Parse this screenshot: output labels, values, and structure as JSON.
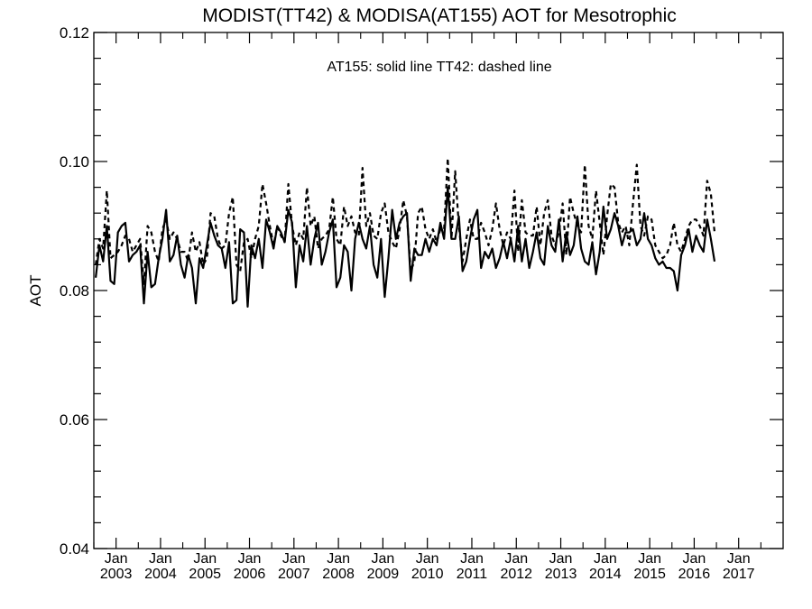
{
  "chart_data": {
    "type": "line",
    "title": "MODIST(TT42) & MODISA(AT155)  AOT for Mesotrophic",
    "annotation": "AT155: solid line   TT42: dashed line",
    "xlabel": "",
    "ylabel": "AOT",
    "ylim": [
      0.04,
      0.12
    ],
    "yticks": [
      0.04,
      0.06,
      0.08,
      0.1,
      0.12
    ],
    "ytick_labels": [
      "0.04",
      "0.06",
      "0.08",
      "0.10",
      "0.12"
    ],
    "xlim": [
      "2002-07",
      "2017-12"
    ],
    "xticks": [
      {
        "month": "Jan",
        "year": "2003"
      },
      {
        "month": "Jan",
        "year": "2004"
      },
      {
        "month": "Jan",
        "year": "2005"
      },
      {
        "month": "Jan",
        "year": "2006"
      },
      {
        "month": "Jan",
        "year": "2007"
      },
      {
        "month": "Jan",
        "year": "2008"
      },
      {
        "month": "Jan",
        "year": "2009"
      },
      {
        "month": "Jan",
        "year": "2010"
      },
      {
        "month": "Jan",
        "year": "2011"
      },
      {
        "month": "Jan",
        "year": "2012"
      },
      {
        "month": "Jan",
        "year": "2013"
      },
      {
        "month": "Jan",
        "year": "2014"
      },
      {
        "month": "Jan",
        "year": "2015"
      },
      {
        "month": "Jan",
        "year": "2016"
      },
      {
        "month": "Jan",
        "year": "2017"
      }
    ],
    "grid": false,
    "legend": "none",
    "series": [
      {
        "name": "AT155",
        "style": "solid",
        "color": "#000000",
        "start": "2002-07",
        "values": [
          0.082,
          0.087,
          0.0845,
          0.09,
          0.0815,
          0.081,
          0.089,
          0.09,
          0.0905,
          0.0845,
          0.0855,
          0.086,
          0.087,
          0.078,
          0.086,
          0.0805,
          0.081,
          0.085,
          0.088,
          0.0925,
          0.0845,
          0.0855,
          0.0885,
          0.084,
          0.082,
          0.0855,
          0.0835,
          0.078,
          0.085,
          0.0835,
          0.087,
          0.0905,
          0.0885,
          0.087,
          0.0865,
          0.0835,
          0.0875,
          0.078,
          0.0785,
          0.0895,
          0.089,
          0.0775,
          0.087,
          0.085,
          0.088,
          0.0835,
          0.091,
          0.089,
          0.0865,
          0.09,
          0.089,
          0.0875,
          0.0925,
          0.0905,
          0.0805,
          0.087,
          0.0845,
          0.09,
          0.084,
          0.088,
          0.0905,
          0.084,
          0.086,
          0.089,
          0.091,
          0.0805,
          0.082,
          0.087,
          0.086,
          0.08,
          0.088,
          0.0905,
          0.088,
          0.0865,
          0.09,
          0.084,
          0.082,
          0.088,
          0.079,
          0.085,
          0.0925,
          0.088,
          0.0905,
          0.0915,
          0.092,
          0.0815,
          0.0865,
          0.0855,
          0.0855,
          0.088,
          0.086,
          0.088,
          0.087,
          0.0905,
          0.088,
          0.096,
          0.088,
          0.088,
          0.0915,
          0.083,
          0.0845,
          0.088,
          0.091,
          0.0925,
          0.0835,
          0.086,
          0.085,
          0.0865,
          0.0835,
          0.085,
          0.0875,
          0.085,
          0.088,
          0.0845,
          0.09,
          0.0845,
          0.088,
          0.0835,
          0.086,
          0.089,
          0.085,
          0.084,
          0.09,
          0.087,
          0.086,
          0.091,
          0.0845,
          0.089,
          0.0855,
          0.087,
          0.0915,
          0.0865,
          0.0845,
          0.084,
          0.0875,
          0.0825,
          0.086,
          0.093,
          0.088,
          0.0895,
          0.092,
          0.09,
          0.087,
          0.089,
          0.089,
          0.0895,
          0.087,
          0.088,
          0.092,
          0.088,
          0.087,
          0.085,
          0.084,
          0.0845,
          0.0835,
          0.0835,
          0.083,
          0.08,
          0.0855,
          0.087,
          0.0895,
          0.086,
          0.0885,
          0.087,
          0.086,
          0.091,
          0.088,
          0.0845
        ]
      },
      {
        "name": "TT42",
        "style": "dashed",
        "color": "#000000",
        "start": "2002-07",
        "values": [
          0.084,
          0.088,
          0.0865,
          0.0955,
          0.085,
          0.0855,
          0.086,
          0.087,
          0.0885,
          0.088,
          0.086,
          0.087,
          0.088,
          0.081,
          0.09,
          0.089,
          0.086,
          0.0845,
          0.0895,
          0.091,
          0.088,
          0.089,
          0.088,
          0.086,
          0.086,
          0.0845,
          0.089,
          0.086,
          0.0875,
          0.084,
          0.085,
          0.092,
          0.0915,
          0.088,
          0.0865,
          0.087,
          0.092,
          0.0945,
          0.084,
          0.083,
          0.0875,
          0.088,
          0.085,
          0.088,
          0.09,
          0.0965,
          0.0935,
          0.09,
          0.087,
          0.09,
          0.0885,
          0.0875,
          0.0965,
          0.09,
          0.087,
          0.089,
          0.088,
          0.096,
          0.09,
          0.0915,
          0.0865,
          0.088,
          0.0885,
          0.0895,
          0.0945,
          0.088,
          0.087,
          0.093,
          0.09,
          0.0915,
          0.089,
          0.0885,
          0.099,
          0.09,
          0.092,
          0.0885,
          0.088,
          0.092,
          0.0935,
          0.089,
          0.0875,
          0.0865,
          0.0895,
          0.094,
          0.0915,
          0.083,
          0.0845,
          0.092,
          0.093,
          0.0895,
          0.088,
          0.0895,
          0.0875,
          0.0895,
          0.0895,
          0.1005,
          0.088,
          0.0985,
          0.09,
          0.0845,
          0.088,
          0.091,
          0.088,
          0.088,
          0.0905,
          0.089,
          0.087,
          0.0895,
          0.0935,
          0.0895,
          0.087,
          0.089,
          0.088,
          0.0955,
          0.086,
          0.094,
          0.089,
          0.0885,
          0.0885,
          0.093,
          0.087,
          0.092,
          0.094,
          0.0885,
          0.087,
          0.089,
          0.0935,
          0.0855,
          0.0945,
          0.092,
          0.09,
          0.089,
          0.0995,
          0.09,
          0.088,
          0.0955,
          0.0905,
          0.0855,
          0.0915,
          0.0965,
          0.096,
          0.0905,
          0.089,
          0.09,
          0.087,
          0.0935,
          0.0995,
          0.09,
          0.0885,
          0.0915,
          0.091,
          0.087,
          0.086,
          0.085,
          0.0855,
          0.087,
          0.0905,
          0.087,
          0.086,
          0.088,
          0.09,
          0.091,
          0.091,
          0.09,
          0.0885,
          0.097,
          0.095,
          0.089
        ]
      }
    ]
  }
}
